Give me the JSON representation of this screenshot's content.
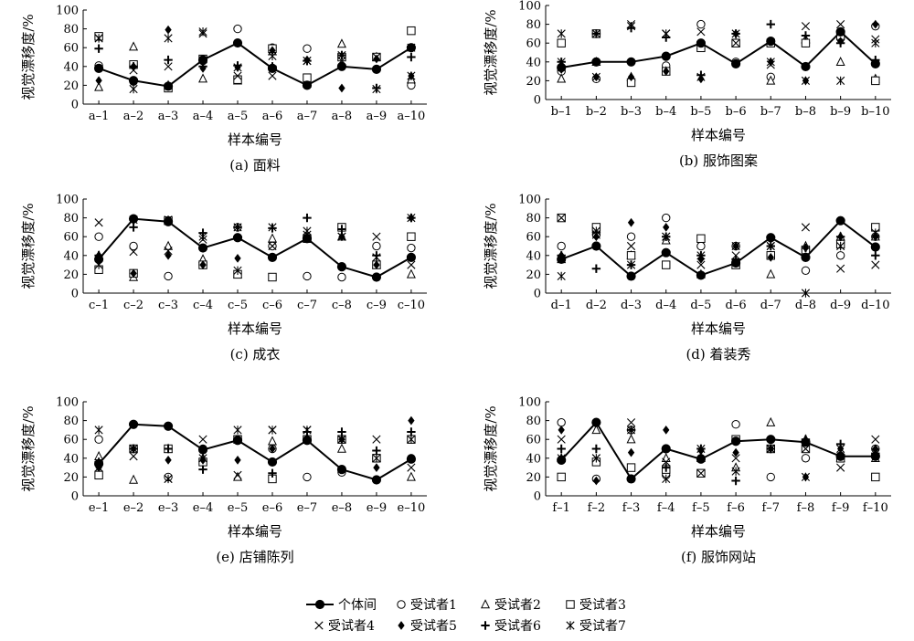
{
  "figure": {
    "legend": [
      {
        "key": "between",
        "label": "个体间",
        "marker": "filled-circle"
      },
      {
        "key": "s1",
        "label": "受试者1",
        "marker": "circle"
      },
      {
        "key": "s2",
        "label": "受试者2",
        "marker": "triangle"
      },
      {
        "key": "s3",
        "label": "受试者3",
        "marker": "square"
      },
      {
        "key": "s4",
        "label": "受试者4",
        "marker": "x"
      },
      {
        "key": "s5",
        "label": "受试者5",
        "marker": "diamond"
      },
      {
        "key": "s6",
        "label": "受试者6",
        "marker": "plus"
      },
      {
        "key": "s7",
        "label": "受试者7",
        "marker": "asterisk"
      }
    ]
  },
  "chart_data": [
    {
      "type": "line",
      "caption": "(a) 面料",
      "xlabel": "样本编号",
      "ylabel": "视觉漂移度/%",
      "ylim": [
        0,
        100
      ],
      "yticks": [
        0,
        20,
        40,
        60,
        80,
        100
      ],
      "categories": [
        "a–1",
        "a–2",
        "a–3",
        "a–4",
        "a–5",
        "a–6",
        "a–7",
        "a–8",
        "a–9",
        "a–10"
      ],
      "series": [
        {
          "name": "个体间",
          "values": [
            38,
            25,
            19,
            47,
            65,
            38,
            20,
            40,
            37,
            60
          ]
        },
        {
          "name": "受试者1",
          "values": [
            41,
            24,
            18,
            46,
            80,
            60,
            59,
            50,
            50,
            20
          ]
        },
        {
          "name": "受试者2",
          "values": [
            18,
            61,
            20,
            27,
            25,
            56,
            22,
            64,
            50,
            26
          ]
        },
        {
          "name": "受试者3",
          "values": [
            72,
            42,
            17,
            48,
            26,
            59,
            28,
            50,
            50,
            78
          ]
        },
        {
          "name": "受试者4",
          "values": [
            70,
            36,
            40,
            75,
            30,
            30,
            46,
            46,
            50,
            60
          ]
        },
        {
          "name": "受试者5",
          "values": [
            25,
            40,
            79,
            38,
            39,
            57,
            47,
            17,
            48,
            30
          ]
        },
        {
          "name": "受试者6",
          "values": [
            59,
            40,
            47,
            40,
            41,
            40,
            46,
            52,
            17,
            50
          ]
        },
        {
          "name": "受试者7",
          "values": [
            70,
            16,
            70,
            77,
            39,
            51,
            46,
            52,
            16,
            30
          ]
        }
      ]
    },
    {
      "type": "line",
      "caption": "(b) 服饰图案",
      "xlabel": "样本编号",
      "ylabel": "视觉漂移度/%",
      "ylim": [
        0,
        100
      ],
      "yticks": [
        0,
        20,
        40,
        60,
        80,
        100
      ],
      "categories": [
        "b–1",
        "b–2",
        "b–3",
        "b–4",
        "b–5",
        "b–6",
        "b–7",
        "b–8",
        "b–9",
        "b–10"
      ],
      "series": [
        {
          "name": "个体间",
          "values": [
            34,
            40,
            40,
            46,
            60,
            38,
            62,
            35,
            72,
            38
          ]
        },
        {
          "name": "受试者1",
          "values": [
            30,
            22,
            20,
            36,
            80,
            40,
            24,
            60,
            65,
            78
          ]
        },
        {
          "name": "受试者2",
          "values": [
            22,
            40,
            24,
            30,
            58,
            60,
            20,
            64,
            40,
            22
          ]
        },
        {
          "name": "受试者3",
          "values": [
            60,
            70,
            18,
            30,
            55,
            60,
            60,
            60,
            68,
            20
          ]
        },
        {
          "name": "受试者4",
          "values": [
            40,
            24,
            80,
            70,
            72,
            60,
            37,
            78,
            80,
            64
          ]
        },
        {
          "name": "受试者5",
          "values": [
            32,
            24,
            24,
            30,
            22,
            70,
            40,
            20,
            62,
            80
          ]
        },
        {
          "name": "受试者6",
          "values": [
            40,
            70,
            76,
            66,
            26,
            70,
            80,
            68,
            60,
            42
          ]
        },
        {
          "name": "受试者7",
          "values": [
            70,
            70,
            78,
            70,
            24,
            70,
            40,
            20,
            20,
            60
          ]
        }
      ]
    },
    {
      "type": "line",
      "caption": "(c) 成衣",
      "xlabel": "样本编号",
      "ylabel": "视觉漂移度/%",
      "ylim": [
        0,
        100
      ],
      "yticks": [
        0,
        20,
        40,
        60,
        80,
        100
      ],
      "categories": [
        "c–1",
        "c–2",
        "c–3",
        "c–4",
        "c–5",
        "c–6",
        "c–7",
        "c–8",
        "c–9",
        "c–10"
      ],
      "series": [
        {
          "name": "个体间",
          "values": [
            36,
            79,
            76,
            48,
            59,
            38,
            58,
            28,
            17,
            38
          ]
        },
        {
          "name": "受试者1",
          "values": [
            60,
            50,
            18,
            30,
            70,
            50,
            18,
            17,
            50,
            48
          ]
        },
        {
          "name": "受试者2",
          "values": [
            40,
            17,
            50,
            36,
            20,
            58,
            60,
            60,
            30,
            20
          ]
        },
        {
          "name": "受试者3",
          "values": [
            25,
            21,
            77,
            30,
            20,
            17,
            58,
            70,
            30,
            60
          ]
        },
        {
          "name": "受试者4",
          "values": [
            75,
            44,
            45,
            57,
            70,
            50,
            62,
            60,
            60,
            30
          ]
        },
        {
          "name": "受试者5",
          "values": [
            40,
            21,
            40,
            30,
            37,
            38,
            58,
            60,
            30,
            80
          ]
        },
        {
          "name": "受试者6",
          "values": [
            40,
            70,
            76,
            64,
            70,
            69,
            80,
            68,
            40,
            80
          ]
        },
        {
          "name": "受试者7",
          "values": [
            30,
            78,
            78,
            60,
            24,
            70,
            66,
            60,
            38,
            80
          ]
        }
      ]
    },
    {
      "type": "line",
      "caption": "(d) 着装秀",
      "xlabel": "样本编号",
      "ylabel": "视觉漂移度/%",
      "ylim": [
        0,
        100
      ],
      "yticks": [
        0,
        20,
        40,
        60,
        80,
        100
      ],
      "categories": [
        "d–1",
        "d–2",
        "d–3",
        "d–4",
        "d–5",
        "d–6",
        "d–7",
        "d–8",
        "d–9",
        "d–10"
      ],
      "series": [
        {
          "name": "个体间",
          "values": [
            36,
            50,
            18,
            43,
            19,
            32,
            59,
            38,
            77,
            49
          ]
        },
        {
          "name": "受试者1",
          "values": [
            50,
            62,
            60,
            80,
            50,
            50,
            40,
            24,
            40,
            60
          ]
        },
        {
          "name": "受试者2",
          "values": [
            36,
            68,
            40,
            56,
            20,
            30,
            20,
            50,
            60,
            60
          ]
        },
        {
          "name": "受试者3",
          "values": [
            80,
            70,
            40,
            30,
            58,
            30,
            40,
            46,
            52,
            70
          ]
        },
        {
          "name": "受试者4",
          "values": [
            80,
            62,
            50,
            60,
            30,
            40,
            50,
            70,
            26,
            30
          ]
        },
        {
          "name": "受试者5",
          "values": [
            40,
            60,
            75,
            70,
            36,
            50,
            38,
            48,
            60,
            60
          ]
        },
        {
          "name": "受试者6",
          "values": [
            40,
            26,
            30,
            60,
            40,
            36,
            50,
            48,
            60,
            40
          ]
        },
        {
          "name": "受试者7",
          "values": [
            18,
            66,
            30,
            60,
            40,
            50,
            50,
            0,
            50,
            64
          ]
        }
      ]
    },
    {
      "type": "line",
      "caption": "(e) 店铺陈列",
      "xlabel": "样本编号",
      "ylabel": "视觉漂移度/%",
      "ylim": [
        0,
        100
      ],
      "yticks": [
        0,
        20,
        40,
        60,
        80,
        100
      ],
      "categories": [
        "e–1",
        "e–2",
        "e–3",
        "e–4",
        "e–5",
        "e–6",
        "e–7",
        "e–8",
        "e–9",
        "e–10"
      ],
      "series": [
        {
          "name": "个体间",
          "values": [
            34,
            76,
            74,
            49,
            59,
            36,
            59,
            28,
            17,
            39
          ]
        },
        {
          "name": "受试者1",
          "values": [
            60,
            50,
            20,
            50,
            60,
            50,
            20,
            25,
            40,
            40
          ]
        },
        {
          "name": "受试者2",
          "values": [
            42,
            17,
            50,
            40,
            20,
            58,
            60,
            50,
            40,
            20
          ]
        },
        {
          "name": "受试者3",
          "values": [
            22,
            50,
            50,
            36,
            60,
            18,
            60,
            60,
            40,
            60
          ]
        },
        {
          "name": "受试者4",
          "values": [
            30,
            42,
            18,
            60,
            22,
            70,
            70,
            60,
            60,
            30
          ]
        },
        {
          "name": "受试者5",
          "values": [
            30,
            50,
            38,
            38,
            38,
            50,
            60,
            60,
            30,
            80
          ]
        },
        {
          "name": "受试者6",
          "values": [
            36,
            50,
            50,
            28,
            60,
            24,
            68,
            68,
            48,
            68
          ]
        },
        {
          "name": "受试者7",
          "values": [
            70,
            50,
            18,
            40,
            70,
            70,
            70,
            60,
            40,
            60
          ]
        }
      ]
    },
    {
      "type": "line",
      "caption": "(f) 服饰网站",
      "xlabel": "样本编号",
      "ylabel": "视觉漂移度/%",
      "ylim": [
        0,
        100
      ],
      "yticks": [
        0,
        20,
        40,
        60,
        80,
        100
      ],
      "categories": [
        "f–1",
        "f–2",
        "f–3",
        "f–4",
        "f–5",
        "f–6",
        "f–7",
        "f–8",
        "f–9",
        "f–10"
      ],
      "series": [
        {
          "name": "个体间",
          "values": [
            38,
            78,
            18,
            50,
            39,
            58,
            60,
            57,
            42,
            42
          ]
        },
        {
          "name": "受试者1",
          "values": [
            78,
            18,
            70,
            22,
            40,
            76,
            20,
            40,
            40,
            50
          ]
        },
        {
          "name": "受试者2",
          "values": [
            40,
            70,
            60,
            40,
            40,
            30,
            78,
            60,
            40,
            40
          ]
        },
        {
          "name": "受试者3",
          "values": [
            20,
            36,
            30,
            28,
            24,
            60,
            50,
            50,
            40,
            20
          ]
        },
        {
          "name": "受试者4",
          "values": [
            60,
            40,
            78,
            36,
            24,
            40,
            50,
            50,
            30,
            60
          ]
        },
        {
          "name": "受试者5",
          "values": [
            70,
            16,
            46,
            70,
            48,
            46,
            50,
            20,
            50,
            50
          ]
        },
        {
          "name": "受试者6",
          "values": [
            50,
            50,
            70,
            30,
            50,
            16,
            50,
            60,
            55,
            45
          ]
        },
        {
          "name": "受试者7",
          "values": [
            40,
            40,
            70,
            18,
            50,
            26,
            50,
            20,
            50,
            46
          ]
        }
      ]
    }
  ]
}
